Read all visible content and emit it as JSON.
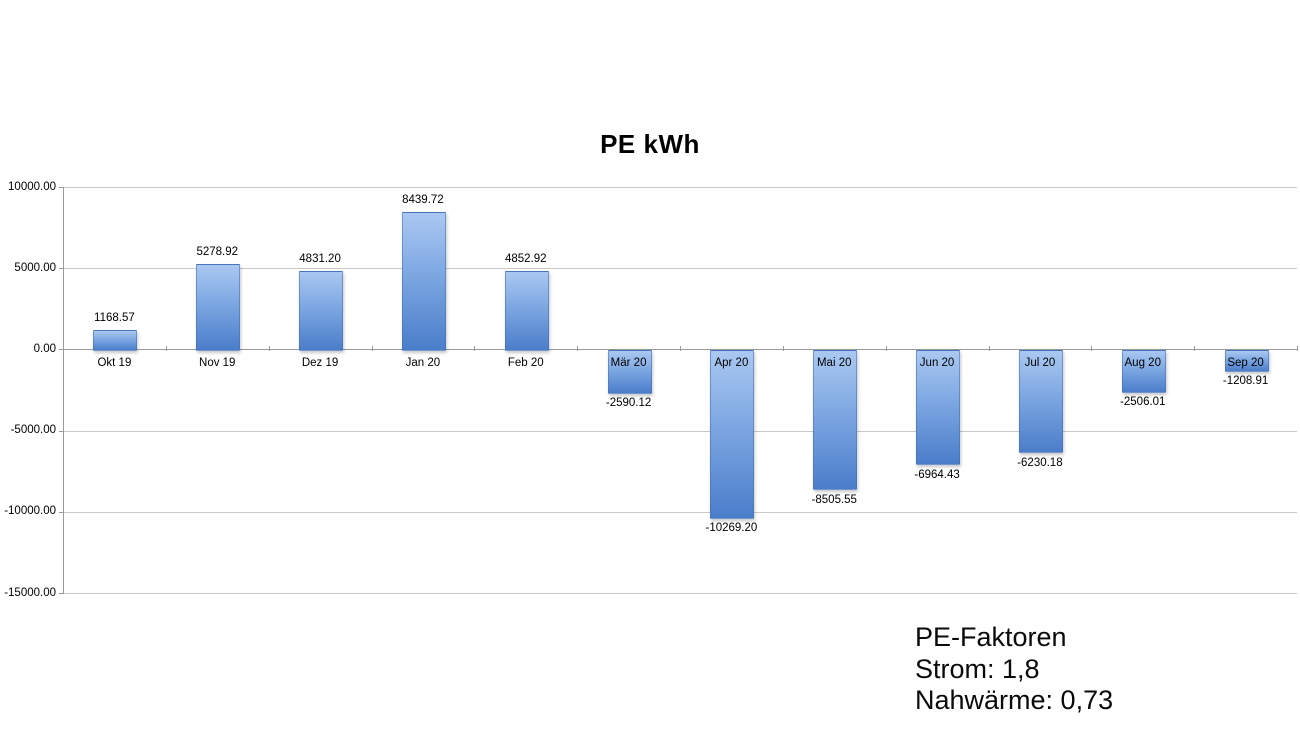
{
  "chart_data": {
    "type": "bar",
    "title": "PE kWh",
    "categories": [
      "Okt 19",
      "Nov 19",
      "Dez 19",
      "Jan 20",
      "Feb 20",
      "Mär 20",
      "Apr 20",
      "Mai 20",
      "Jun 20",
      "Jul 20",
      "Aug 20",
      "Sep 20"
    ],
    "values": [
      1168.57,
      5278.92,
      4831.2,
      8439.72,
      4852.92,
      -2590.12,
      -10269.2,
      -8505.55,
      -6964.43,
      -6230.18,
      -2506.01,
      -1208.91
    ],
    "data_labels": [
      "1168.57",
      "5278.92",
      "4831.20",
      "8439.72",
      "4852.92",
      "-2590.12",
      "-10269.20",
      "-8505.55",
      "-6964.43",
      "-6230.18",
      "-2506.01",
      "-1208.91"
    ],
    "xlabel": "",
    "ylabel": "",
    "ylim": [
      -15000,
      10000
    ],
    "ytick_interval": 5000,
    "ytick_labels": [
      "10000.00",
      "5000.00",
      "0.00",
      "-5000.00",
      "-10000.00",
      "-15000.00"
    ],
    "grid": true,
    "legend": false,
    "bar_color_top": "#aac8f1",
    "bar_color_bottom": "#4a7dca",
    "gridline_color": "#c9c9c9",
    "axis_color": "#9a9a9a"
  },
  "annotation": {
    "lines": [
      "PE-Faktoren",
      "Strom: 1,8",
      "Nahwärme: 0,73"
    ]
  }
}
